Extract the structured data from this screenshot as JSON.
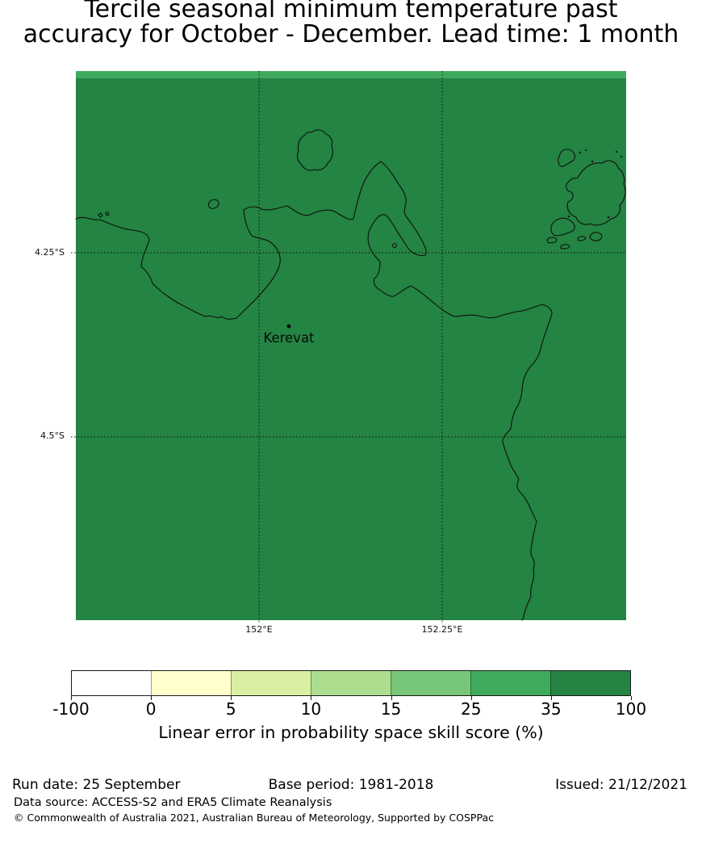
{
  "title": {
    "line1": "Tercile seasonal minimum temperature past",
    "line2": "accuracy for October - December. Lead time: 1 month"
  },
  "map": {
    "station_label": "Kerevat",
    "x_tick_labels": [
      "152°E",
      "152.25°E"
    ],
    "y_tick_labels": [
      "4.25°S",
      "4.5°S"
    ],
    "fill_color": "#238443",
    "top_band_color": "#41ab5d",
    "coastline_color": "#101010"
  },
  "colorbar": {
    "tick_labels": [
      "-100",
      "0",
      "5",
      "10",
      "15",
      "25",
      "35",
      "100"
    ],
    "segment_colors": [
      "#ffffff",
      "#ffffcc",
      "#d9f0a3",
      "#addd8e",
      "#78c679",
      "#41ab5d",
      "#238443"
    ],
    "label": "Linear error in probability space skill score (%)"
  },
  "footer": {
    "run_date": "Run date: 25 September",
    "base_period": "Base period: 1981-2018",
    "issued": "Issued: 21/12/2021",
    "data_source": "Data source: ACCESS-S2 and ERA5 Climate Reanalysis",
    "copyright": "© Commonwealth of Australia 2021, Australian Bureau of Meteorology, Supported by COSPPac"
  },
  "chart_data": {
    "type": "heatmap",
    "title": "Tercile seasonal minimum temperature past accuracy for October - December. Lead time: 1 month",
    "colorbar_label": "Linear error in probability space skill score (%)",
    "colorbar_bounds": [
      -100,
      0,
      5,
      10,
      15,
      25,
      35,
      100
    ],
    "colorbar_colors": [
      "#ffffff",
      "#ffffcc",
      "#d9f0a3",
      "#addd8e",
      "#78c679",
      "#41ab5d",
      "#238443"
    ],
    "x_ticks": [
      "152°E",
      "152.25°E"
    ],
    "y_ticks": [
      "4.25°S",
      "4.5°S"
    ],
    "station": {
      "name": "Kerevat"
    },
    "map_reading": {
      "dominant_region_band": "35 to 100",
      "top_edge_band": "25 to 35"
    },
    "legend_position": "bottom",
    "grid": "dotted graticule at ticks"
  }
}
